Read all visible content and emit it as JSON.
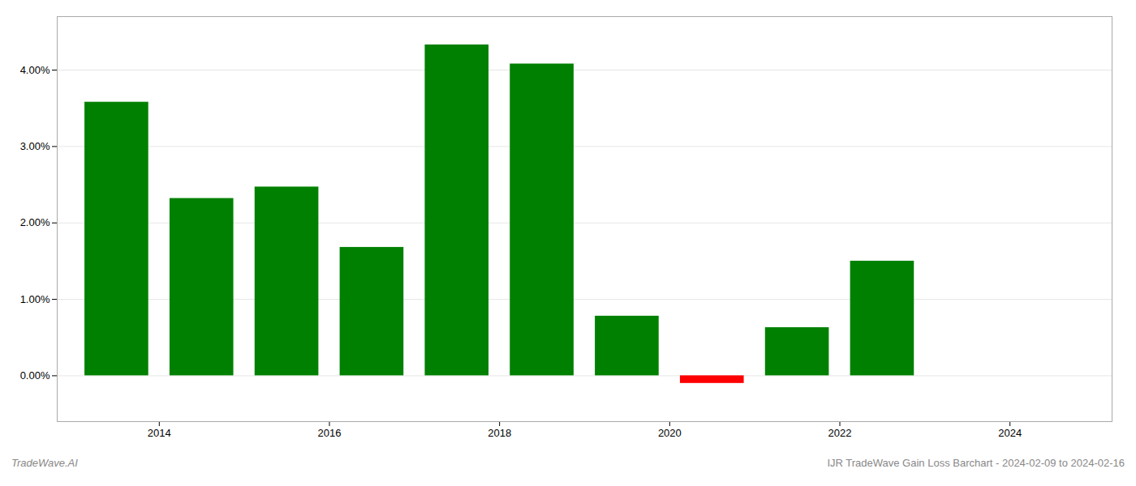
{
  "chart_data": {
    "type": "bar",
    "x": [
      2013,
      2014,
      2015,
      2016,
      2017,
      2018,
      2019,
      2020,
      2021,
      2022,
      2023
    ],
    "values": [
      0.0358,
      0.0232,
      0.0247,
      0.0168,
      0.0433,
      0.0408,
      0.0078,
      -0.001,
      0.0063,
      0.015,
      0.0
    ],
    "colors": [
      "#008000",
      "#008000",
      "#008000",
      "#008000",
      "#008000",
      "#008000",
      "#008000",
      "#ff0000",
      "#008000",
      "#008000",
      "#008000"
    ],
    "xlim": [
      2012.3,
      2024.7
    ],
    "xticks": [
      {
        "value": 2013.5,
        "label": "2014"
      },
      {
        "value": 2015.5,
        "label": "2016"
      },
      {
        "value": 2017.5,
        "label": "2018"
      },
      {
        "value": 2019.5,
        "label": "2020"
      },
      {
        "value": 2021.5,
        "label": "2022"
      },
      {
        "value": 2023.5,
        "label": "2024"
      }
    ],
    "ylim": [
      -0.006,
      0.047
    ],
    "yticks": [
      {
        "value": 0.0,
        "label": "0.00%"
      },
      {
        "value": 0.01,
        "label": "1.00%"
      },
      {
        "value": 0.02,
        "label": "2.00%"
      },
      {
        "value": 0.03,
        "label": "3.00%"
      },
      {
        "value": 0.04,
        "label": "4.00%"
      }
    ],
    "grid": true,
    "annotations": [
      "TradeWave.AI",
      "IJR TradeWave Gain Loss Barchart - 2024-02-09 to 2024-02-16"
    ]
  }
}
